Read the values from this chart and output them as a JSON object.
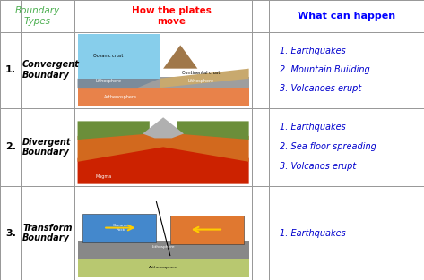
{
  "title_col1": "Boundary\nTypes",
  "title_col2": "How the plates\nmove",
  "title_col3": "What can happen",
  "title_col1_color": "#4CAF50",
  "title_col2_color": "#FF0000",
  "title_col3_color": "#0000FF",
  "rows": [
    {
      "number": "1.",
      "boundary": "Convergent\nBoundary",
      "effects": [
        "1. Earthquakes",
        "2. Mountain Building",
        "3. Volcanoes erupt"
      ]
    },
    {
      "number": "2.",
      "boundary": "Divergent\nBoundary",
      "effects": [
        "1. Earthquakes",
        "2. Sea floor spreading",
        "3. Volcanos erupt"
      ]
    },
    {
      "number": "3.",
      "boundary": "Transform\nBoundary",
      "effects": [
        "1. Earthquakes"
      ]
    }
  ],
  "bg_color": "#FFFFFF",
  "number_color": "#000000",
  "boundary_color": "#000000",
  "effect_color": "#0000CD",
  "grid_color": "#999999",
  "c0": 0.0,
  "c1": 0.048,
  "c2": 0.175,
  "c3": 0.595,
  "c4": 0.635,
  "c5": 1.0,
  "r0": 1.0,
  "r1": 0.885,
  "r2": 0.615,
  "r3": 0.335,
  "r4": 0.0,
  "conv_colors": {
    "sky": "#87CEEB",
    "sand": "#C8A96E",
    "gray_layer": "#808080",
    "orange": "#E8804A",
    "dark_layer": "#696969"
  },
  "div_colors": {
    "green": "#6B8E3A",
    "orange": "#D2691E",
    "red": "#CC2200",
    "gray": "#A0A0A0",
    "dark": "#8B4513"
  },
  "trans_colors": {
    "blue": "#4488CC",
    "orange": "#E07830",
    "green_bg": "#B8C870",
    "gray": "#888888",
    "yellow": "#FFCC00"
  }
}
